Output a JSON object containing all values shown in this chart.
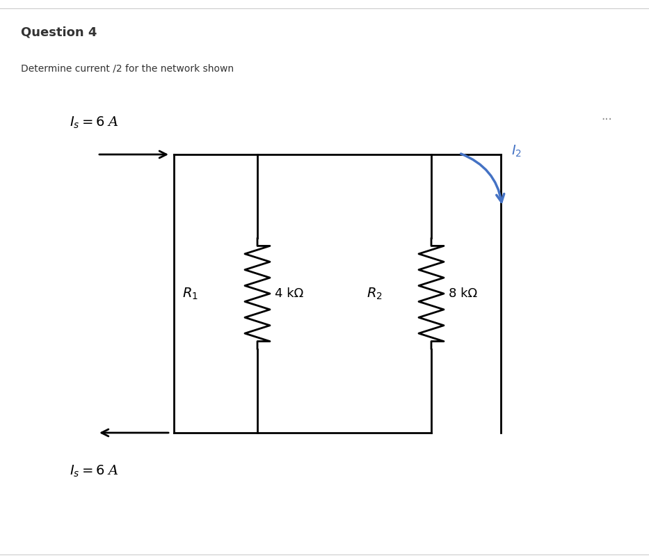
{
  "title": "Question 4",
  "subtitle": "Determine current /2 for the network shown",
  "bg_color": "#ffffff",
  "circuit_color": "#000000",
  "arrow_color": "#4472c4",
  "title_fontsize": 13,
  "subtitle_fontsize": 10,
  "label_Is_top": "$I_s = 6$ A",
  "label_Is_bot": "$I_s = 6$ A",
  "label_I2": "$I_2$",
  "label_R1": "$R_1$",
  "label_R1_val": "4 kΩ",
  "label_R2": "$R_2$",
  "label_R2_val": "8 kΩ",
  "dots": "..."
}
